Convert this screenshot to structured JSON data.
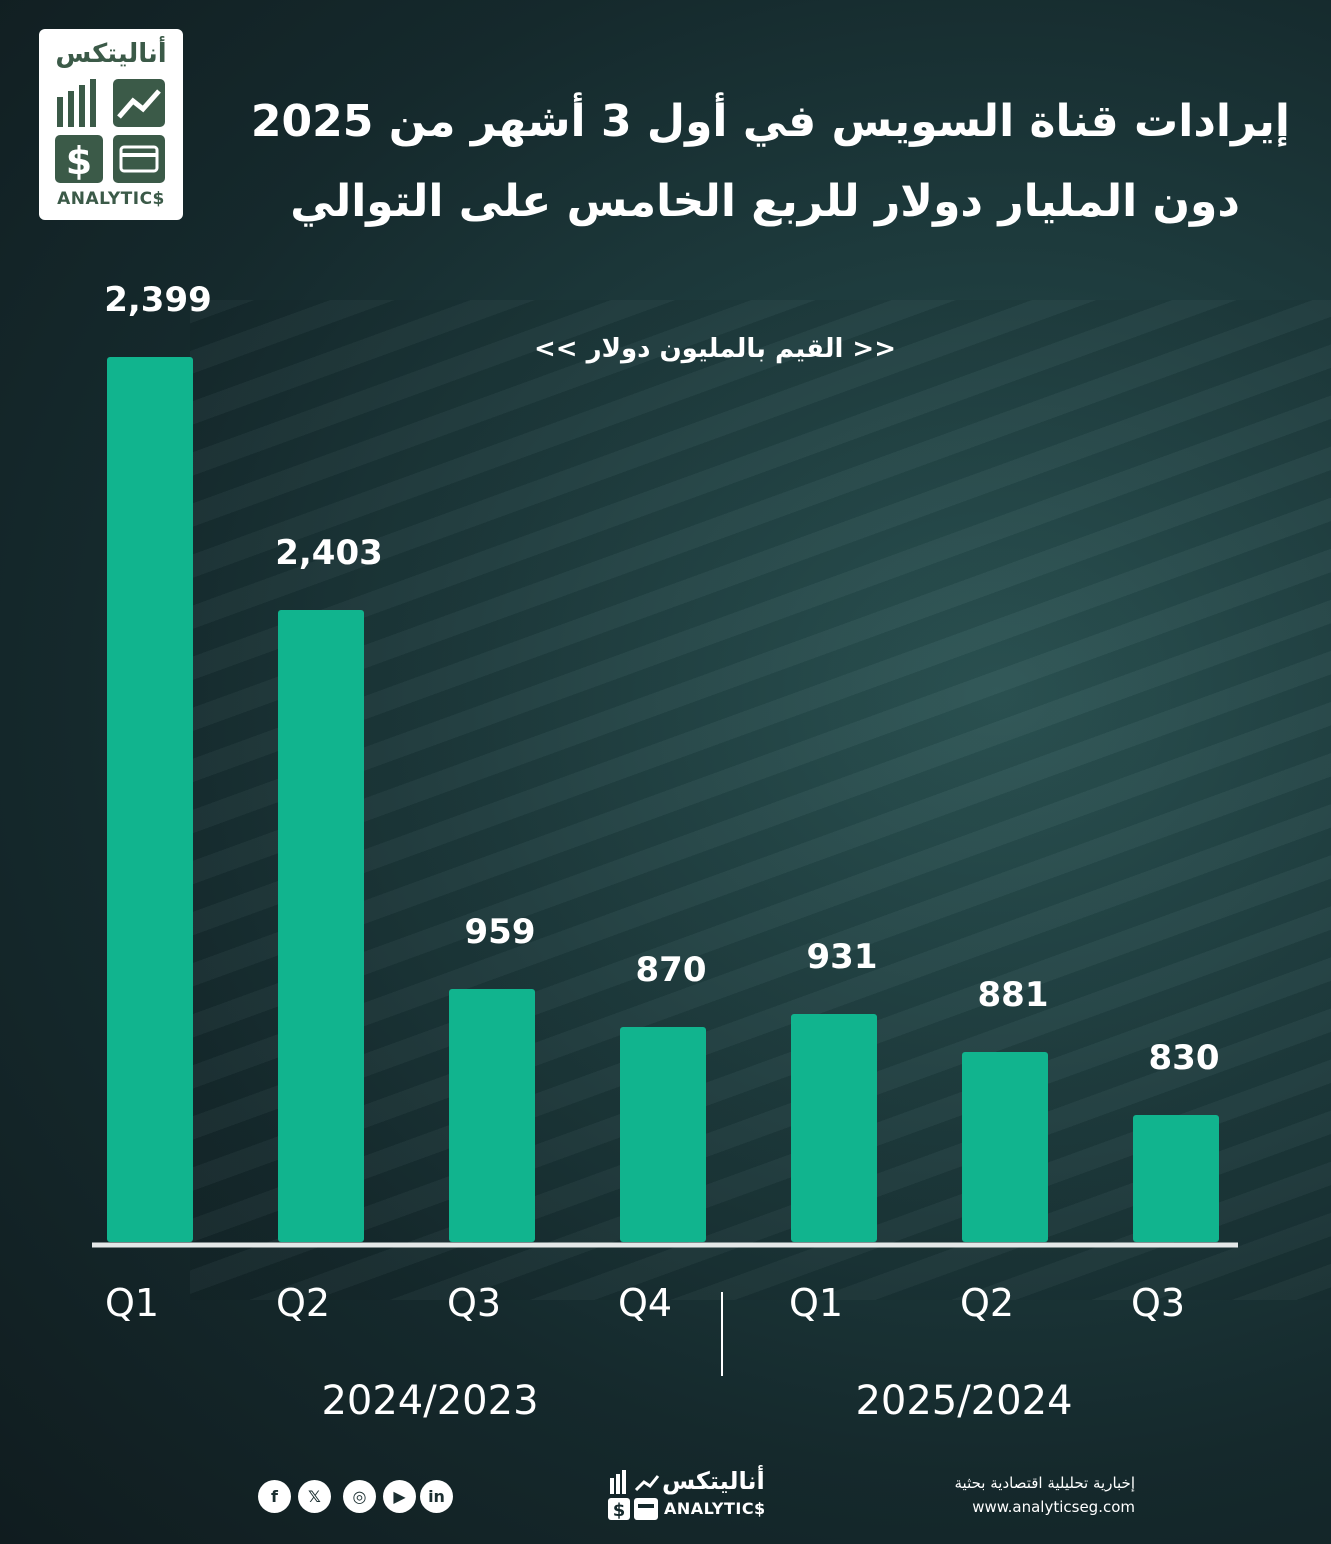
{
  "brand": {
    "logo_ar": "أناليتكس",
    "logo_en": "ANALYTIC$",
    "tagline_ar": "إخبارية تحليلية اقتصادية بحثية",
    "website": "www.analyticseg.com"
  },
  "title_lines": [
    "إيرادات قناة السويس في أول 3 أشهر من 2025",
    "دون المليار دولار للربع الخامس على التوالي"
  ],
  "unit_note": "<< القيم بالمليون دولار >>",
  "social_icons": [
    "facebook-icon",
    "x-icon",
    "instagram-icon",
    "youtube-icon",
    "linkedin-icon"
  ],
  "colors": {
    "bar": "#11b48e",
    "baseline": "#e4e8e8",
    "text": "#ffffff",
    "logo_green": "#3b5a48"
  },
  "chart_data": {
    "type": "bar",
    "title": "إيرادات قناة السويس في أول 3 أشهر من 2025 دون المليار دولار للربع الخامس على التوالي",
    "categories": [
      "Q1",
      "Q2",
      "Q3",
      "Q4",
      "Q1",
      "Q2",
      "Q3"
    ],
    "values": [
      2399,
      2403,
      959,
      870,
      931,
      881,
      830
    ],
    "value_labels": [
      "2,399",
      "2,403",
      "959",
      "870",
      "931",
      "881",
      "830"
    ],
    "groups": [
      {
        "label": "2024/2023",
        "categories": [
          "Q1",
          "Q2",
          "Q3",
          "Q4"
        ]
      },
      {
        "label": "2025/2024",
        "categories": [
          "Q1",
          "Q2",
          "Q3"
        ]
      }
    ],
    "xlabel": "",
    "ylabel": "",
    "legend": "none",
    "grid": false
  }
}
